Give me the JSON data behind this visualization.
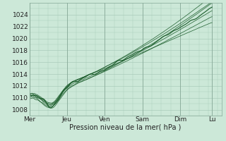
{
  "title": "",
  "xlabel": "Pression niveau de la mer( hPa )",
  "ylabel": "",
  "bg_color": "#cce8d8",
  "grid_color": "#aaccbb",
  "line_color": "#1a5c2a",
  "ylim": [
    1007,
    1026
  ],
  "yticks": [
    1008,
    1010,
    1012,
    1014,
    1016,
    1018,
    1020,
    1022,
    1024
  ],
  "x_days": [
    "Mer",
    "Jeu",
    "Ven",
    "Sam",
    "Dim",
    "Lu"
  ],
  "day_positions": [
    0,
    1,
    2,
    3,
    4,
    4.85
  ],
  "xlim": [
    0,
    5.1
  ],
  "n_points": 400,
  "n_ensemble": 6
}
